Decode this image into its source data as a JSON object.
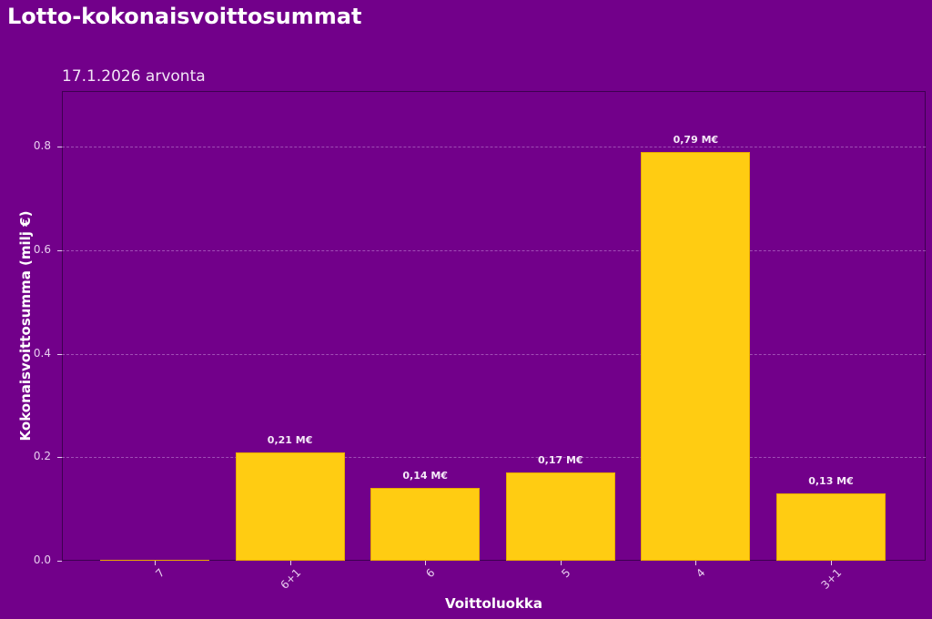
{
  "header": {
    "title": "Lotto-kokonaisvoittosummat",
    "subtitle": "17.1.2026 arvonta"
  },
  "axes": {
    "xlabel": "Voittoluokka",
    "ylabel": "Kokonaisvoittosumma (milj €)",
    "yticks": [
      "0.0",
      "0.2",
      "0.4",
      "0.6",
      "0.8"
    ]
  },
  "colors": {
    "background": "#72008a",
    "bar": "#ffcc12",
    "text": "#ffffff"
  },
  "chart_data": {
    "type": "bar",
    "title": "Lotto-kokonaisvoittosummat",
    "subtitle": "17.1.2026 arvonta",
    "xlabel": "Voittoluokka",
    "ylabel": "Kokonaisvoittosumma (milj €)",
    "categories": [
      "7",
      "6+1",
      "6",
      "5",
      "4",
      "3+1"
    ],
    "values": [
      0.0,
      0.21,
      0.14,
      0.17,
      0.79,
      0.13
    ],
    "data_labels": [
      "",
      "0,21 M€",
      "0,14 M€",
      "0,17 M€",
      "0,79 M€",
      "0,13 M€"
    ],
    "ylim": [
      0,
      0.907
    ],
    "yticks": [
      0.0,
      0.2,
      0.4,
      0.6,
      0.8
    ],
    "grid": "horizontal dashed",
    "legend": "none",
    "xtick_rotation": 45
  }
}
